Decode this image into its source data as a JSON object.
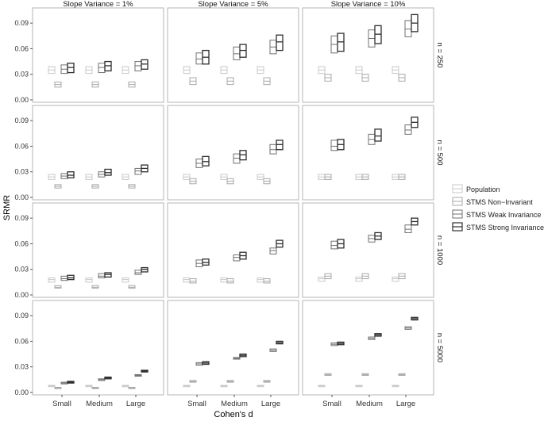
{
  "chart_data": {
    "type": "boxplot-facets",
    "ylabel": "SRMR",
    "xlabel": "Cohen's d",
    "ylim": [
      0.0,
      0.105
    ],
    "yticks": [
      0.0,
      0.03,
      0.06,
      0.09
    ],
    "ytick_labels": [
      "0.00",
      "0.03",
      "0.06",
      "0.09"
    ],
    "categories": [
      "Small",
      "Medium",
      "Large"
    ],
    "col_labels": [
      "Slope Variance = 1%",
      "Slope Variance = 5%",
      "Slope Variance = 10%"
    ],
    "row_labels": [
      "n = 250",
      "n = 500",
      "n = 1000",
      "n = 5000"
    ],
    "legend": {
      "position": "right",
      "entries": [
        {
          "name": "Population",
          "color": "#c8c8c8"
        },
        {
          "name": "STMS Non−Invariant",
          "color": "#a8a8a8"
        },
        {
          "name": "STMS Weak Invariance",
          "color": "#707070"
        },
        {
          "name": "STMS Strong Invariance",
          "color": "#2e2e2e"
        }
      ]
    },
    "series_colors": [
      "#c8c8c8",
      "#a8a8a8",
      "#707070",
      "#2e2e2e"
    ],
    "panels": [
      {
        "row": 0,
        "col": 0,
        "boxes": [
          [
            [
              0.031,
              0.035,
              0.039
            ],
            [
              0.015,
              0.018,
              0.021
            ],
            [
              0.031,
              0.036,
              0.041
            ],
            [
              0.032,
              0.038,
              0.043
            ]
          ],
          [
            [
              0.031,
              0.035,
              0.039
            ],
            [
              0.015,
              0.018,
              0.021
            ],
            [
              0.032,
              0.038,
              0.043
            ],
            [
              0.034,
              0.04,
              0.045
            ]
          ],
          [
            [
              0.031,
              0.035,
              0.039
            ],
            [
              0.015,
              0.018,
              0.021
            ],
            [
              0.034,
              0.04,
              0.045
            ],
            [
              0.036,
              0.042,
              0.047
            ]
          ]
        ]
      },
      {
        "row": 0,
        "col": 1,
        "boxes": [
          [
            [
              0.031,
              0.035,
              0.039
            ],
            [
              0.018,
              0.022,
              0.026
            ],
            [
              0.042,
              0.048,
              0.055
            ],
            [
              0.042,
              0.05,
              0.058
            ]
          ],
          [
            [
              0.031,
              0.035,
              0.039
            ],
            [
              0.018,
              0.022,
              0.026
            ],
            [
              0.047,
              0.054,
              0.062
            ],
            [
              0.05,
              0.058,
              0.065
            ]
          ],
          [
            [
              0.031,
              0.035,
              0.039
            ],
            [
              0.018,
              0.022,
              0.026
            ],
            [
              0.054,
              0.062,
              0.07
            ],
            [
              0.058,
              0.068,
              0.076
            ]
          ]
        ]
      },
      {
        "row": 0,
        "col": 2,
        "boxes": [
          [
            [
              0.031,
              0.035,
              0.039
            ],
            [
              0.022,
              0.026,
              0.03
            ],
            [
              0.055,
              0.065,
              0.075
            ],
            [
              0.057,
              0.068,
              0.078
            ]
          ],
          [
            [
              0.031,
              0.035,
              0.039
            ],
            [
              0.022,
              0.026,
              0.03
            ],
            [
              0.062,
              0.072,
              0.082
            ],
            [
              0.066,
              0.077,
              0.087
            ]
          ],
          [
            [
              0.031,
              0.035,
              0.039
            ],
            [
              0.022,
              0.026,
              0.03
            ],
            [
              0.074,
              0.083,
              0.093
            ],
            [
              0.08,
              0.09,
              0.1
            ]
          ]
        ]
      },
      {
        "row": 1,
        "col": 0,
        "boxes": [
          [
            [
              0.021,
              0.024,
              0.027
            ],
            [
              0.011,
              0.013,
              0.015
            ],
            [
              0.022,
              0.025,
              0.028
            ],
            [
              0.023,
              0.026,
              0.03
            ]
          ],
          [
            [
              0.021,
              0.024,
              0.027
            ],
            [
              0.011,
              0.013,
              0.015
            ],
            [
              0.024,
              0.027,
              0.03
            ],
            [
              0.026,
              0.029,
              0.033
            ]
          ],
          [
            [
              0.021,
              0.024,
              0.027
            ],
            [
              0.011,
              0.013,
              0.015
            ],
            [
              0.027,
              0.031,
              0.034
            ],
            [
              0.03,
              0.034,
              0.038
            ]
          ]
        ]
      },
      {
        "row": 1,
        "col": 1,
        "boxes": [
          [
            [
              0.021,
              0.024,
              0.027
            ],
            [
              0.016,
              0.019,
              0.022
            ],
            [
              0.035,
              0.04,
              0.045
            ],
            [
              0.037,
              0.042,
              0.048
            ]
          ],
          [
            [
              0.021,
              0.024,
              0.027
            ],
            [
              0.016,
              0.019,
              0.022
            ],
            [
              0.04,
              0.046,
              0.051
            ],
            [
              0.044,
              0.05,
              0.055
            ]
          ],
          [
            [
              0.021,
              0.024,
              0.027
            ],
            [
              0.016,
              0.019,
              0.022
            ],
            [
              0.051,
              0.056,
              0.062
            ],
            [
              0.056,
              0.062,
              0.067
            ]
          ]
        ]
      },
      {
        "row": 1,
        "col": 2,
        "boxes": [
          [
            [
              0.021,
              0.024,
              0.027
            ],
            [
              0.021,
              0.024,
              0.027
            ],
            [
              0.055,
              0.06,
              0.067
            ],
            [
              0.056,
              0.062,
              0.068
            ]
          ],
          [
            [
              0.021,
              0.024,
              0.027
            ],
            [
              0.021,
              0.024,
              0.027
            ],
            [
              0.062,
              0.068,
              0.074
            ],
            [
              0.066,
              0.072,
              0.08
            ]
          ],
          [
            [
              0.021,
              0.024,
              0.027
            ],
            [
              0.021,
              0.024,
              0.027
            ],
            [
              0.074,
              0.079,
              0.085
            ],
            [
              0.082,
              0.088,
              0.094
            ]
          ]
        ]
      },
      {
        "row": 2,
        "col": 0,
        "boxes": [
          [
            [
              0.015,
              0.018,
              0.02
            ],
            [
              0.008,
              0.009,
              0.011
            ],
            [
              0.017,
              0.019,
              0.022
            ],
            [
              0.018,
              0.02,
              0.023
            ]
          ],
          [
            [
              0.015,
              0.018,
              0.02
            ],
            [
              0.008,
              0.009,
              0.011
            ],
            [
              0.02,
              0.022,
              0.025
            ],
            [
              0.021,
              0.024,
              0.026
            ]
          ],
          [
            [
              0.015,
              0.018,
              0.02
            ],
            [
              0.008,
              0.009,
              0.011
            ],
            [
              0.024,
              0.026,
              0.029
            ],
            [
              0.027,
              0.03,
              0.032
            ]
          ]
        ]
      },
      {
        "row": 2,
        "col": 1,
        "boxes": [
          [
            [
              0.015,
              0.018,
              0.02
            ],
            [
              0.014,
              0.016,
              0.019
            ],
            [
              0.033,
              0.037,
              0.041
            ],
            [
              0.035,
              0.038,
              0.042
            ]
          ],
          [
            [
              0.015,
              0.018,
              0.02
            ],
            [
              0.014,
              0.016,
              0.019
            ],
            [
              0.04,
              0.044,
              0.047
            ],
            [
              0.042,
              0.046,
              0.05
            ]
          ],
          [
            [
              0.015,
              0.018,
              0.02
            ],
            [
              0.014,
              0.016,
              0.019
            ],
            [
              0.048,
              0.052,
              0.055
            ],
            [
              0.056,
              0.06,
              0.064
            ]
          ]
        ]
      },
      {
        "row": 2,
        "col": 2,
        "boxes": [
          [
            [
              0.016,
              0.019,
              0.021
            ],
            [
              0.019,
              0.022,
              0.025
            ],
            [
              0.054,
              0.058,
              0.063
            ],
            [
              0.055,
              0.06,
              0.065
            ]
          ],
          [
            [
              0.016,
              0.019,
              0.021
            ],
            [
              0.019,
              0.022,
              0.025
            ],
            [
              0.062,
              0.066,
              0.07
            ],
            [
              0.065,
              0.069,
              0.073
            ]
          ],
          [
            [
              0.016,
              0.019,
              0.021
            ],
            [
              0.019,
              0.022,
              0.025
            ],
            [
              0.073,
              0.077,
              0.082
            ],
            [
              0.082,
              0.086,
              0.09
            ]
          ]
        ]
      },
      {
        "row": 3,
        "col": 0,
        "boxes": [
          [
            [
              0.0068,
              0.0076,
              0.0084
            ],
            [
              0.0045,
              0.0052,
              0.006
            ],
            [
              0.01,
              0.011,
              0.012
            ],
            [
              0.011,
              0.012,
              0.013
            ]
          ],
          [
            [
              0.0068,
              0.0076,
              0.0084
            ],
            [
              0.0045,
              0.0052,
              0.006
            ],
            [
              0.014,
              0.015,
              0.016
            ],
            [
              0.016,
              0.017,
              0.018
            ]
          ],
          [
            [
              0.0068,
              0.0076,
              0.0084
            ],
            [
              0.0045,
              0.0052,
              0.006
            ],
            [
              0.019,
              0.02,
              0.021
            ],
            [
              0.024,
              0.025,
              0.026
            ]
          ]
        ]
      },
      {
        "row": 3,
        "col": 1,
        "boxes": [
          [
            [
              0.0068,
              0.0076,
              0.0084
            ],
            [
              0.012,
              0.013,
              0.014
            ],
            [
              0.032,
              0.0335,
              0.035
            ],
            [
              0.033,
              0.0345,
              0.036
            ]
          ],
          [
            [
              0.0068,
              0.0076,
              0.0084
            ],
            [
              0.012,
              0.013,
              0.014
            ],
            [
              0.039,
              0.04,
              0.041
            ],
            [
              0.042,
              0.0435,
              0.045
            ]
          ],
          [
            [
              0.0068,
              0.0076,
              0.0084
            ],
            [
              0.012,
              0.013,
              0.014
            ],
            [
              0.048,
              0.0495,
              0.051
            ],
            [
              0.057,
              0.0585,
              0.06
            ]
          ]
        ]
      },
      {
        "row": 3,
        "col": 2,
        "boxes": [
          [
            [
              0.0068,
              0.0076,
              0.0084
            ],
            [
              0.02,
              0.021,
              0.022
            ],
            [
              0.055,
              0.0565,
              0.058
            ],
            [
              0.056,
              0.0575,
              0.059
            ]
          ],
          [
            [
              0.0068,
              0.0076,
              0.0084
            ],
            [
              0.02,
              0.021,
              0.022
            ],
            [
              0.062,
              0.0635,
              0.065
            ],
            [
              0.066,
              0.0675,
              0.069
            ]
          ],
          [
            [
              0.0068,
              0.0076,
              0.0084
            ],
            [
              0.02,
              0.021,
              0.022
            ],
            [
              0.074,
              0.0755,
              0.077
            ],
            [
              0.085,
              0.0865,
              0.088
            ]
          ]
        ]
      }
    ]
  }
}
